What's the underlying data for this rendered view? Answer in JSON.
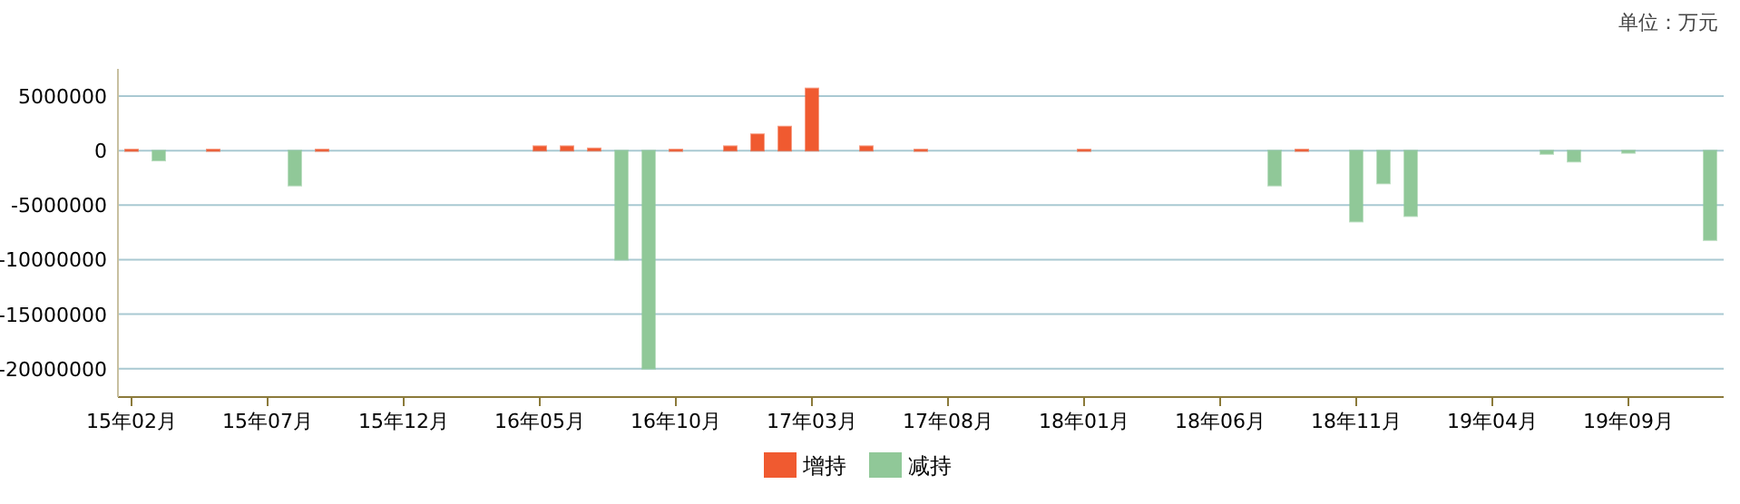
{
  "chart_data": {
    "type": "bar",
    "annotations": [
      "单位：万元"
    ],
    "categories": [
      "15年02月",
      null,
      null,
      null,
      null,
      "15年07月",
      null,
      null,
      null,
      null,
      "15年12月",
      null,
      null,
      null,
      null,
      "16年05月",
      null,
      null,
      null,
      null,
      "16年10月",
      null,
      null,
      null,
      null,
      "17年03月",
      null,
      null,
      null,
      null,
      "17年08月",
      null,
      null,
      null,
      null,
      "18年01月",
      null,
      null,
      null,
      null,
      "18年06月",
      null,
      null,
      null,
      null,
      "18年11月",
      null,
      null,
      null,
      null,
      "19年04月",
      null,
      null,
      null,
      null,
      "19年09月",
      null,
      null,
      null
    ],
    "series": [
      {
        "name": "增持",
        "color": "#f05a30",
        "values": [
          100000,
          null,
          null,
          100000,
          null,
          null,
          null,
          100000,
          null,
          null,
          null,
          null,
          null,
          null,
          null,
          400000,
          400000,
          200000,
          null,
          null,
          100000,
          null,
          400000,
          1500000,
          2200000,
          5700000,
          null,
          400000,
          null,
          100000,
          null,
          null,
          null,
          null,
          null,
          100000,
          null,
          null,
          null,
          null,
          null,
          null,
          null,
          100000,
          null,
          null,
          null,
          null,
          null,
          null,
          null,
          null,
          null,
          null,
          null,
          null,
          null,
          null,
          null
        ]
      },
      {
        "name": "减持",
        "color": "#90c898",
        "values": [
          null,
          -900000,
          null,
          null,
          null,
          null,
          -3200000,
          null,
          null,
          null,
          null,
          null,
          null,
          null,
          null,
          null,
          null,
          null,
          -10000000,
          -20000000,
          null,
          null,
          null,
          null,
          null,
          null,
          null,
          null,
          null,
          null,
          null,
          null,
          null,
          null,
          null,
          null,
          null,
          null,
          null,
          null,
          null,
          null,
          -3200000,
          null,
          null,
          -6500000,
          -3000000,
          -6000000,
          null,
          null,
          null,
          null,
          -300000,
          -1000000,
          null,
          -200000,
          null,
          null,
          -8200000
        ]
      }
    ],
    "ylim": [
      -22600000,
      7500000
    ],
    "yticks": [
      -20000000,
      -15000000,
      -10000000,
      -5000000,
      0,
      5000000
    ],
    "grid": "y",
    "legend": "bottom"
  }
}
